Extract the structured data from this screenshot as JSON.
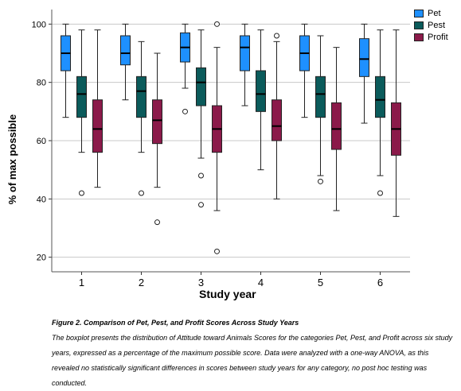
{
  "chart_data": {
    "type": "boxplot",
    "xlabel": "Study year",
    "ylabel": "% of max possible",
    "ylim": [
      15,
      105
    ],
    "yticks": [
      20,
      40,
      60,
      80,
      100
    ],
    "categories": [
      "1",
      "2",
      "3",
      "4",
      "5",
      "6"
    ],
    "legend_position": "top-right",
    "grid": "horizontal",
    "series": [
      {
        "name": "Pet",
        "color": "#1e90ff",
        "boxes": [
          {
            "whisker_low": 68,
            "q1": 84,
            "median": 90,
            "q3": 96,
            "whisker_high": 100,
            "outliers": []
          },
          {
            "whisker_low": 74,
            "q1": 86,
            "median": 90,
            "q3": 96,
            "whisker_high": 100,
            "outliers": []
          },
          {
            "whisker_low": 78,
            "q1": 87,
            "median": 92,
            "q3": 97,
            "whisker_high": 100,
            "outliers": [
              70
            ]
          },
          {
            "whisker_low": 72,
            "q1": 84,
            "median": 92,
            "q3": 96,
            "whisker_high": 100,
            "outliers": []
          },
          {
            "whisker_low": 68,
            "q1": 84,
            "median": 90,
            "q3": 96,
            "whisker_high": 100,
            "outliers": []
          },
          {
            "whisker_low": 66,
            "q1": 82,
            "median": 88,
            "q3": 95,
            "whisker_high": 100,
            "outliers": []
          }
        ]
      },
      {
        "name": "Pest",
        "color": "#0b5b5b",
        "boxes": [
          {
            "whisker_low": 56,
            "q1": 68,
            "median": 76,
            "q3": 82,
            "whisker_high": 98,
            "outliers": [
              42
            ]
          },
          {
            "whisker_low": 56,
            "q1": 68,
            "median": 77,
            "q3": 82,
            "whisker_high": 94,
            "outliers": [
              42
            ]
          },
          {
            "whisker_low": 54,
            "q1": 72,
            "median": 80,
            "q3": 85,
            "whisker_high": 98,
            "outliers": [
              48,
              38
            ]
          },
          {
            "whisker_low": 50,
            "q1": 70,
            "median": 76,
            "q3": 84,
            "whisker_high": 98,
            "outliers": []
          },
          {
            "whisker_low": 48,
            "q1": 68,
            "median": 76,
            "q3": 82,
            "whisker_high": 96,
            "outliers": [
              46
            ]
          },
          {
            "whisker_low": 48,
            "q1": 68,
            "median": 74,
            "q3": 82,
            "whisker_high": 98,
            "outliers": [
              42
            ]
          }
        ]
      },
      {
        "name": "Profit",
        "color": "#8b1a4a",
        "boxes": [
          {
            "whisker_low": 44,
            "q1": 56,
            "median": 64,
            "q3": 74,
            "whisker_high": 98,
            "outliers": []
          },
          {
            "whisker_low": 44,
            "q1": 59,
            "median": 67,
            "q3": 74,
            "whisker_high": 90,
            "outliers": [
              32
            ]
          },
          {
            "whisker_low": 36,
            "q1": 56,
            "median": 64,
            "q3": 72,
            "whisker_high": 92,
            "outliers": [
              100,
              22
            ]
          },
          {
            "whisker_low": 40,
            "q1": 60,
            "median": 65,
            "q3": 74,
            "whisker_high": 94,
            "outliers": [
              96
            ]
          },
          {
            "whisker_low": 36,
            "q1": 57,
            "median": 64,
            "q3": 73,
            "whisker_high": 92,
            "outliers": []
          },
          {
            "whisker_low": 34,
            "q1": 55,
            "median": 64,
            "q3": 73,
            "whisker_high": 98,
            "outliers": []
          }
        ]
      }
    ]
  },
  "caption": {
    "title": "Figure 2. Comparison of Pet, Pest, and Profit Scores Across Study Years",
    "body": "The boxplot presents the distribution of Attitude toward Animals Scores for the categories Pet, Pest, and Profit across six study years, expressed as a percentage of the maximum possible score. Data were analyzed with a one-way ANOVA, as this revealed no statistically significant differences in scores between study years for any category, no post hoc testing was conducted."
  }
}
